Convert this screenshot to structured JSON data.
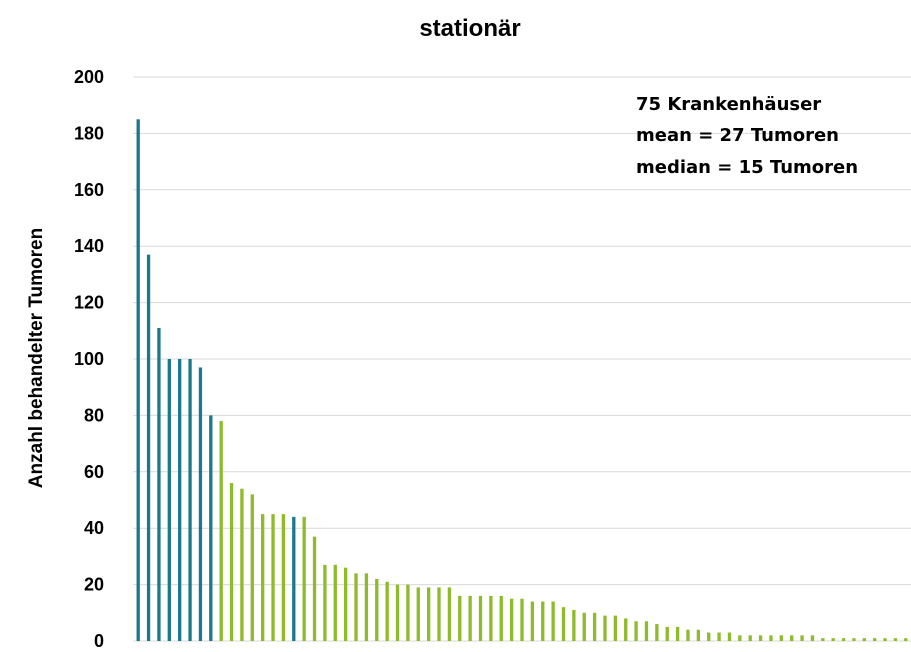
{
  "chart_data": {
    "type": "bar",
    "title": "stationär",
    "xlabel": "",
    "ylabel": "Anzahl behandelter Tumoren",
    "ylim": [
      0,
      200
    ],
    "yticks": [
      0,
      20,
      40,
      60,
      80,
      100,
      120,
      140,
      160,
      180,
      200
    ],
    "grid": true,
    "annotations": [
      "75 Krankenhäuser",
      "mean = 27 Tumoren",
      "median = 15 Tumoren"
    ],
    "colors": {
      "highlight": "#1a7a8c",
      "default": "#8dbb2c",
      "grid": "#d9d9d9"
    },
    "values": [
      185,
      137,
      111,
      100,
      100,
      100,
      97,
      80,
      78,
      56,
      54,
      52,
      45,
      45,
      45,
      44,
      44,
      37,
      27,
      27,
      26,
      24,
      24,
      22,
      21,
      20,
      20,
      19,
      19,
      19,
      19,
      16,
      16,
      16,
      16,
      16,
      15,
      15,
      14,
      14,
      14,
      12,
      11,
      10,
      10,
      9,
      9,
      8,
      7,
      7,
      6,
      5,
      5,
      4,
      4,
      3,
      3,
      3,
      2,
      2,
      2,
      2,
      2,
      2,
      2,
      2,
      1,
      1,
      1,
      1,
      1,
      1,
      1,
      1,
      1
    ],
    "highlighted": [
      0,
      1,
      2,
      3,
      4,
      5,
      6,
      7,
      15
    ]
  }
}
